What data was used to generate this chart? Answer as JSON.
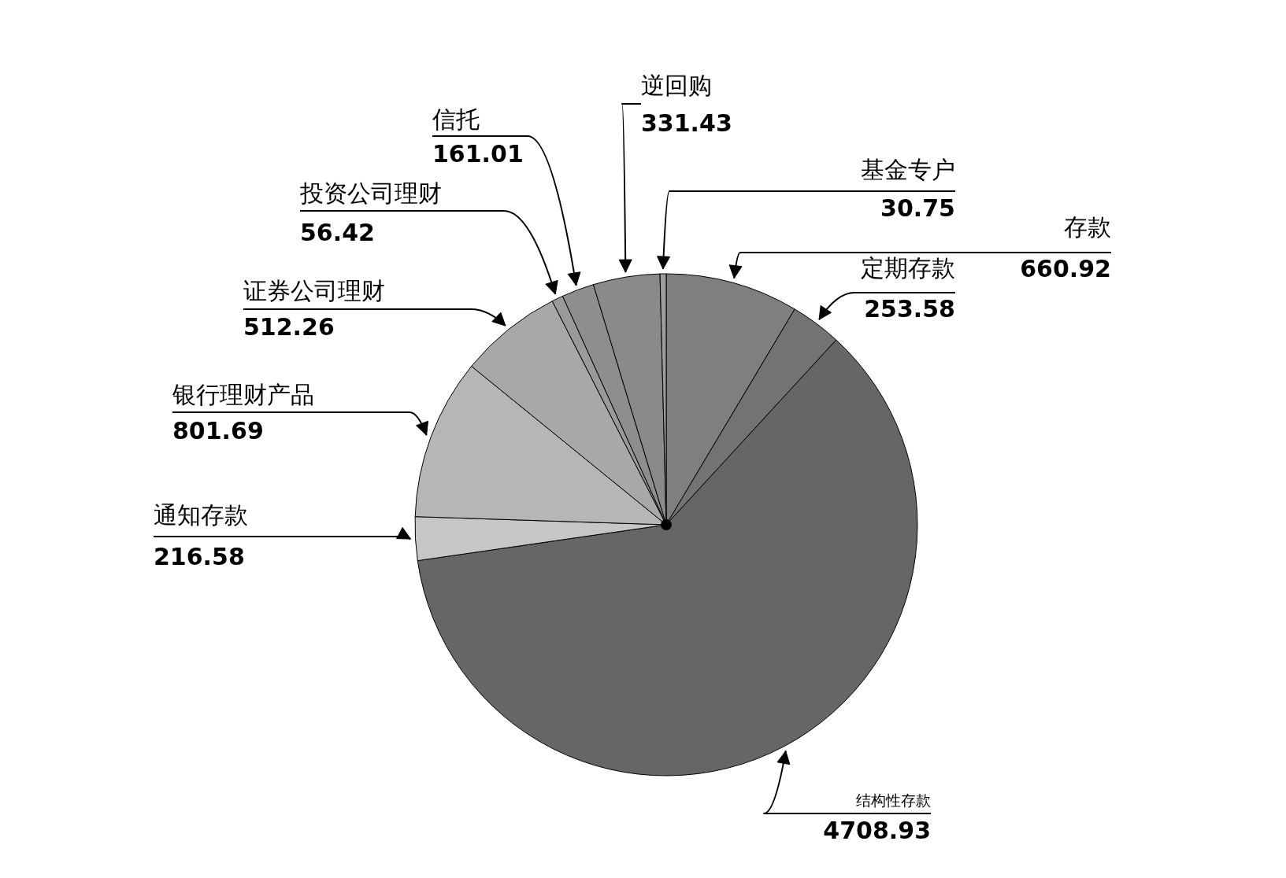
{
  "chart_data": {
    "type": "pie",
    "data_labels": true,
    "categories": [
      "存款",
      "定期存款",
      "结构性存款",
      "通知存款",
      "银行理财产品",
      "证券公司理财",
      "投资公司理财",
      "信托",
      "逆回购",
      "基金专户"
    ],
    "values": [
      660.92,
      253.58,
      4708.93,
      216.58,
      801.69,
      512.26,
      56.42,
      161.01,
      331.43,
      30.75
    ],
    "colors": [
      "#7f7f7f",
      "#737373",
      "#666666",
      "#c6c6c6",
      "#b6b6b6",
      "#a8a8a8",
      "#9a9a9a",
      "#8e8e8e",
      "#8a8a8a",
      "#9c9c9c"
    ]
  }
}
